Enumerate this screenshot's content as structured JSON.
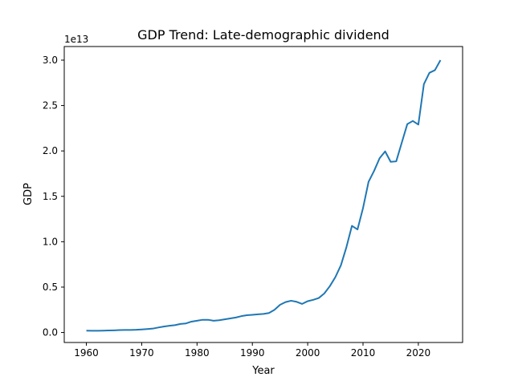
{
  "chart_data": {
    "type": "line",
    "title": "GDP Trend: Late-demographic dividend",
    "xlabel": "Year",
    "ylabel": "GDP",
    "y_offset_label": "1e13",
    "xlim": [
      1956,
      2028
    ],
    "ylim": [
      -1100000000000.0,
      31500000000000.0
    ],
    "x_ticks": [
      1960,
      1970,
      1980,
      1990,
      2000,
      2010,
      2020
    ],
    "y_ticks": [
      0.0,
      0.5,
      1.0,
      1.5,
      2.0,
      2.5,
      3.0
    ],
    "y_tick_labels": [
      "0.0",
      "0.5",
      "1.0",
      "1.5",
      "2.0",
      "2.5",
      "3.0"
    ],
    "grid": false,
    "line_color": "#1f77b4",
    "series": [
      {
        "x": [
          1960,
          1961,
          1962,
          1963,
          1964,
          1965,
          1966,
          1967,
          1968,
          1969,
          1970,
          1971,
          1972,
          1973,
          1974,
          1975,
          1976,
          1977,
          1978,
          1979,
          1980,
          1981,
          1982,
          1983,
          1984,
          1985,
          1986,
          1987,
          1988,
          1989,
          1990,
          1991,
          1992,
          1993,
          1994,
          1995,
          1996,
          1997,
          1998,
          1999,
          2000,
          2001,
          2002,
          2003,
          2004,
          2005,
          2006,
          2007,
          2008,
          2009,
          2010,
          2011,
          2012,
          2013,
          2014,
          2015,
          2016,
          2017,
          2018,
          2019,
          2020,
          2021,
          2022,
          2023,
          2024
        ],
        "values": [
          200000000000.0,
          190000000000.0,
          190000000000.0,
          200000000000.0,
          220000000000.0,
          240000000000.0,
          270000000000.0,
          280000000000.0,
          280000000000.0,
          300000000000.0,
          340000000000.0,
          380000000000.0,
          430000000000.0,
          550000000000.0,
          660000000000.0,
          740000000000.0,
          810000000000.0,
          940000000000.0,
          1000000000000.0,
          1200000000000.0,
          1300000000000.0,
          1400000000000.0,
          1400000000000.0,
          1300000000000.0,
          1350000000000.0,
          1450000000000.0,
          1550000000000.0,
          1650000000000.0,
          1800000000000.0,
          1900000000000.0,
          1950000000000.0,
          2000000000000.0,
          2050000000000.0,
          2150000000000.0,
          2500000000000.0,
          3050000000000.0,
          3350000000000.0,
          3500000000000.0,
          3380000000000.0,
          3150000000000.0,
          3450000000000.0,
          3600000000000.0,
          3800000000000.0,
          4300000000000.0,
          5100000000000.0,
          6100000000000.0,
          7400000000000.0,
          9400000000000.0,
          11750000000000.0,
          11350000000000.0,
          13700000000000.0,
          16600000000000.0,
          17800000000000.0,
          19200000000000.0,
          19950000000000.0,
          18800000000000.0,
          18850000000000.0,
          20900000000000.0,
          22950000000000.0,
          23300000000000.0,
          22900000000000.0,
          27350000000000.0,
          28600000000000.0,
          28900000000000.0,
          30000000000000.0
        ]
      }
    ]
  }
}
